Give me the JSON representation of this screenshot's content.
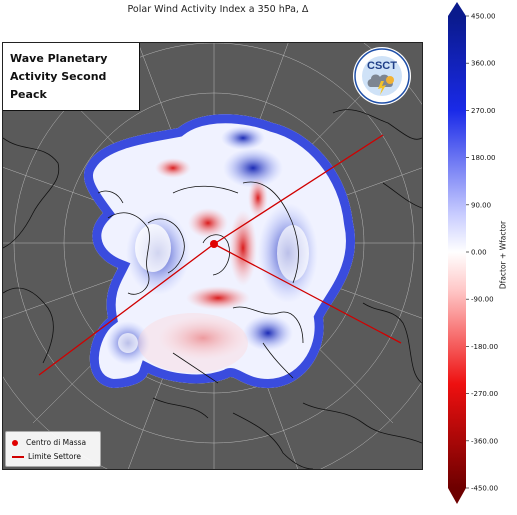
{
  "figure": {
    "title": "Polar Wind Activity Index a 350 hPa, Δ",
    "overlay_title_line1": "Wave Planetary",
    "overlay_title_line2": "Activity Second Peack",
    "logo_text": "CSCT",
    "logo_ring_text": "CENTER FOR STUDY ON CLIMATE AND TELECONNECTIONS"
  },
  "legend": {
    "center_of_mass": "Centro di Massa",
    "sector_limit": "Limite Settore"
  },
  "colorbar": {
    "label": "Dfactor + Wfactor",
    "min": -450,
    "max": 450,
    "ticks": [
      "450.00",
      "360.00",
      "270.00",
      "180.00",
      "90.00",
      "0.00",
      "-90.00",
      "-180.00",
      "-270.00",
      "-360.00",
      "-450.00"
    ],
    "colormap": "seismic_r",
    "color_high": "#0a1a8c",
    "color_mid": "#ffffff",
    "color_low": "#6e0000"
  },
  "map": {
    "projection": "north-polar-stereographic",
    "background_color": "#5a5a5a",
    "center_of_mass_color": "#e00000",
    "sector_line_color": "#d00000"
  }
}
